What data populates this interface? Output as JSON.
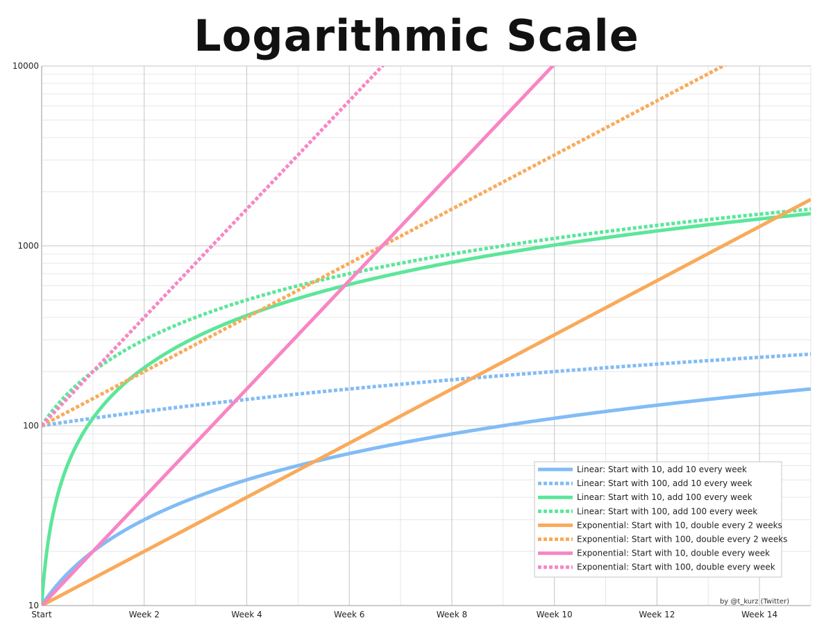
{
  "chart_data": {
    "type": "line",
    "title": "Logarithmic Scale",
    "xlabel": "",
    "ylabel": "",
    "y_scale": "log",
    "ylim": [
      10,
      10000
    ],
    "xlim": [
      0,
      15
    ],
    "y_ticks": [
      10,
      100,
      1000,
      10000
    ],
    "x_tick_values": [
      0,
      2,
      4,
      6,
      8,
      10,
      12,
      14
    ],
    "x_tick_labels": [
      "Start",
      "Week 2",
      "Week 4",
      "Week 6",
      "Week 8",
      "Week 10",
      "Week 12",
      "Week 14"
    ],
    "grid": true,
    "legend_position": "bottom-right",
    "credit": "by @t_kurz (Twitter)",
    "series": [
      {
        "name": "Linear: Start with 10, add 10 every week",
        "kind": "linear",
        "start": 10,
        "step": 10,
        "color": "#82bcf5",
        "dashed": false
      },
      {
        "name": "Linear: Start with 100, add 10 every week",
        "kind": "linear",
        "start": 100,
        "step": 10,
        "color": "#82bcf5",
        "dashed": true
      },
      {
        "name": "Linear: Start with 10, add 100 every week",
        "kind": "linear",
        "start": 10,
        "step": 100,
        "color": "#5ce69a",
        "dashed": false
      },
      {
        "name": "Linear: Start with 100, add 100 every week",
        "kind": "linear",
        "start": 100,
        "step": 100,
        "color": "#5ce69a",
        "dashed": true
      },
      {
        "name": "Exponential: Start with 10, double every 2 weeks",
        "kind": "exponential",
        "start": 10,
        "doubling_weeks": 2,
        "color": "#f9aa5a",
        "dashed": false
      },
      {
        "name": "Exponential: Start with 100, double every 2 weeks",
        "kind": "exponential",
        "start": 100,
        "doubling_weeks": 2,
        "color": "#f9aa5a",
        "dashed": true
      },
      {
        "name": "Exponential: Start with 10, double every week",
        "kind": "exponential",
        "start": 10,
        "doubling_weeks": 1,
        "color": "#f885c4",
        "dashed": false
      },
      {
        "name": "Exponential: Start with 100, double every week",
        "kind": "exponential",
        "start": 100,
        "doubling_weeks": 1,
        "color": "#f885c4",
        "dashed": true
      }
    ]
  }
}
